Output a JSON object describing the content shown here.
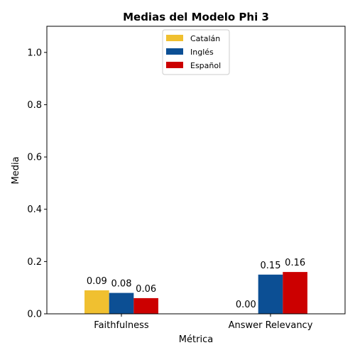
{
  "chart_data": {
    "type": "bar",
    "title": "Medias del Modelo Phi 3",
    "xlabel": "Métrica",
    "ylabel": "Media",
    "categories": [
      "Faithfulness",
      "Answer Relevancy"
    ],
    "series": [
      {
        "name": "Catalán",
        "values": [
          0.09,
          0.0
        ],
        "labels": [
          "0.09",
          "0.00"
        ],
        "color": "#f0c030"
      },
      {
        "name": "Inglés",
        "values": [
          0.08,
          0.15
        ],
        "labels": [
          "0.08",
          "0.15"
        ],
        "color": "#0c4f94"
      },
      {
        "name": "Español",
        "values": [
          0.06,
          0.16
        ],
        "labels": [
          "0.06",
          "0.16"
        ],
        "color": "#cc0000"
      }
    ],
    "ylim": [
      0,
      1.1
    ],
    "yticks": [
      "0.0",
      "0.2",
      "0.4",
      "0.6",
      "0.8",
      "1.0"
    ],
    "grid": false,
    "legend": "top-center"
  }
}
